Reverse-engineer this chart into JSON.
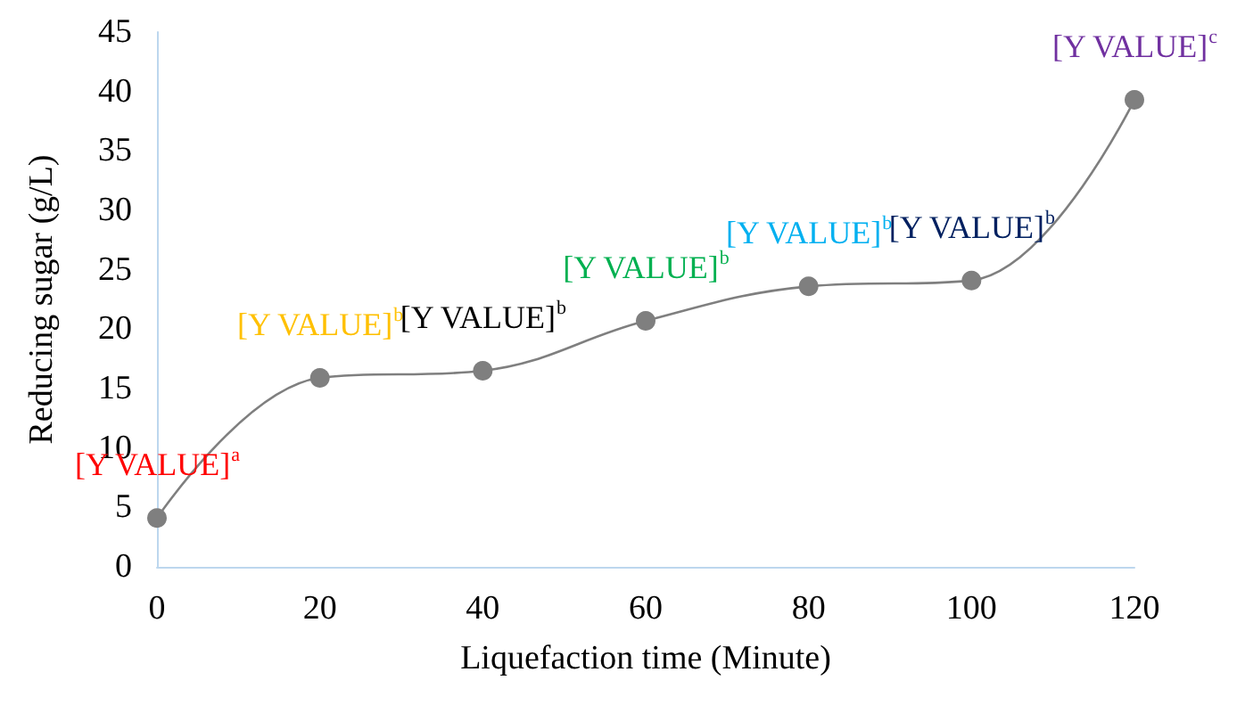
{
  "chart_data": {
    "type": "line",
    "xlabel": "Liquefaction time (Minute)",
    "ylabel": "Reducing sugar (g/L)",
    "x": [
      0,
      20,
      40,
      60,
      80,
      100,
      120
    ],
    "series": [
      {
        "color": "#7f7f7f",
        "values": [
          4.1,
          15.9,
          16.5,
          20.7,
          23.6,
          24.1,
          39.3
        ],
        "value_labels": [
          "[Y VALUE]$^{a}$",
          "[Y VALUE]$^{b}$",
          "[Y VALUE]$^{b}$",
          "[Y VALUE]$^{b}$",
          "[Y VALUE]$^{b}$",
          "[Y VALUE]$^{b}$",
          "[Y VALUE]$^{c}$"
        ]
      }
    ],
    "xlim": [
      0,
      120
    ],
    "xticks": [
      0,
      20,
      40,
      60,
      80,
      100,
      120
    ],
    "ylim": [
      0,
      45
    ],
    "yticks": [
      0,
      5,
      10,
      15,
      20,
      25,
      30,
      35,
      40,
      45
    ],
    "grid": false,
    "marker": "circle",
    "line_style": "solid"
  }
}
